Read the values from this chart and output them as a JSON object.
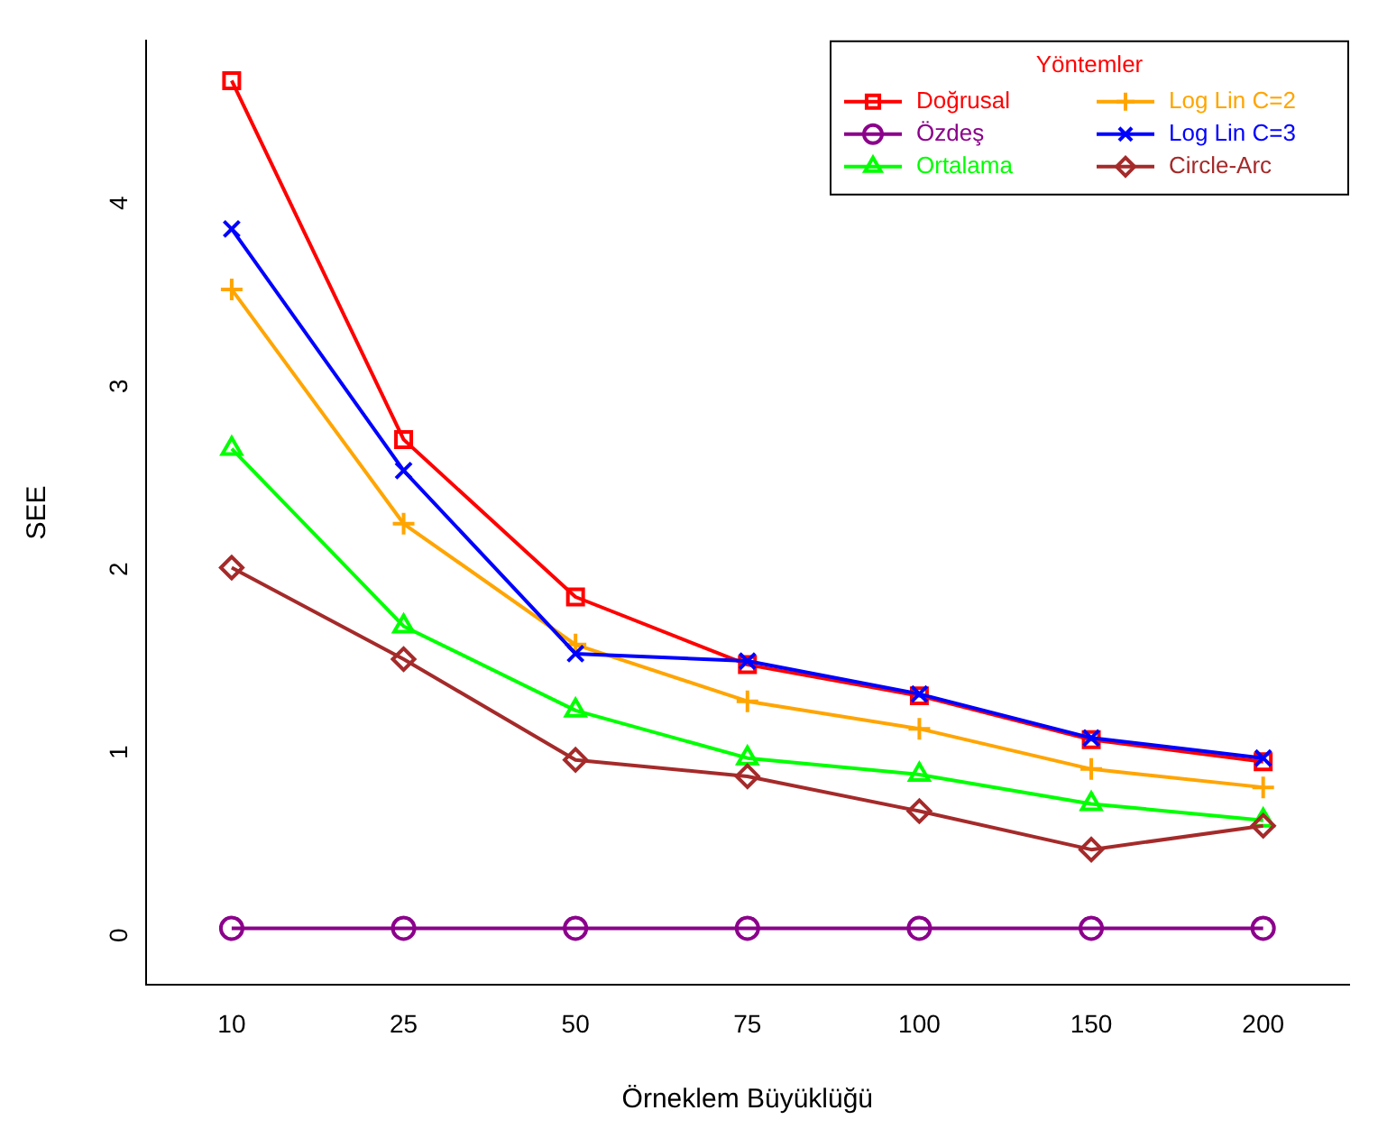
{
  "chart_data": {
    "type": "line",
    "xlabel": "Örneklem Büyüklüğü",
    "ylabel": "SEE",
    "legend_title": "Yöntemler",
    "legend": "top right",
    "grid": false,
    "categories": [
      "10",
      "25",
      "50",
      "75",
      "100",
      "150",
      "200"
    ],
    "ylim": [
      -0.31,
      4.85
    ],
    "yticks": [
      0,
      1,
      2,
      3,
      4
    ],
    "series": [
      {
        "name": "Doğrusal",
        "color": "#ff0000",
        "marker": "square",
        "values": [
          4.63,
          2.67,
          1.81,
          1.44,
          1.27,
          1.03,
          0.91
        ]
      },
      {
        "name": "Özdeş",
        "color": "#8b008b",
        "marker": "circle",
        "values": [
          0,
          0,
          0,
          0,
          0,
          0,
          0
        ]
      },
      {
        "name": "Ortalama",
        "color": "#00ff00",
        "marker": "triangle",
        "values": [
          2.62,
          1.65,
          1.19,
          0.93,
          0.84,
          0.68,
          0.59
        ]
      },
      {
        "name": "Log Lin C=2",
        "color": "#ffa500",
        "marker": "cross",
        "values": [
          3.49,
          2.21,
          1.55,
          1.24,
          1.09,
          0.87,
          0.77
        ]
      },
      {
        "name": "Log Lin C=3",
        "color": "#0000ff",
        "marker": "x",
        "values": [
          3.82,
          2.5,
          1.5,
          1.46,
          1.28,
          1.04,
          0.93
        ]
      },
      {
        "name": "Circle-Arc",
        "color": "#a52a2a",
        "marker": "diamond",
        "values": [
          1.97,
          1.47,
          0.92,
          0.83,
          0.64,
          0.43,
          0.56
        ]
      }
    ]
  }
}
